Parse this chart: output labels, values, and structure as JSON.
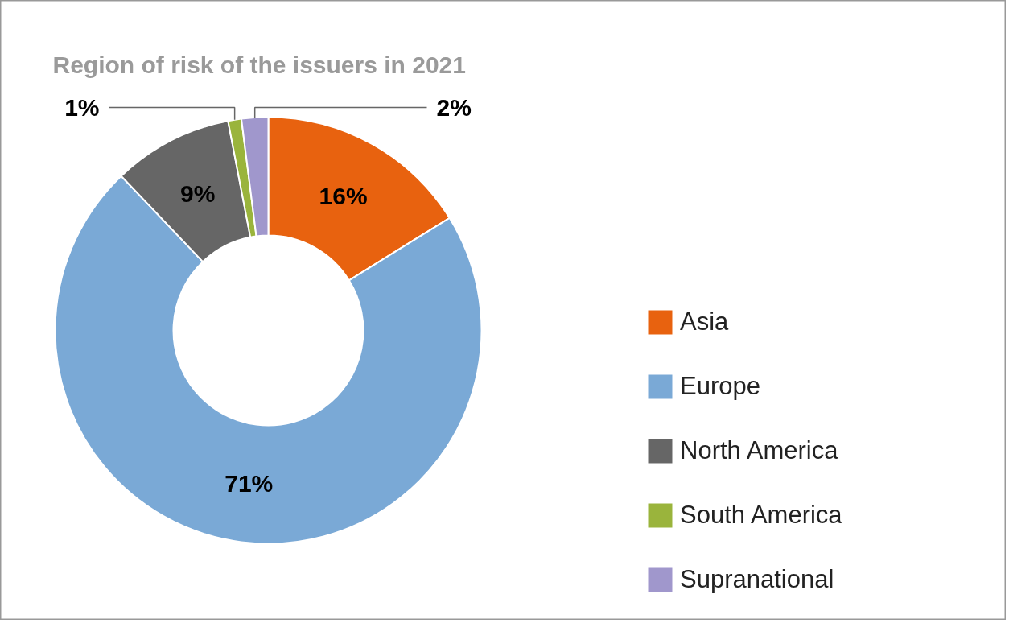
{
  "chart_data": {
    "type": "donut",
    "title": "Region of risk of the issuers in 2021",
    "categories": [
      "Asia",
      "Europe",
      "North America",
      "South America",
      "Supranational"
    ],
    "values": [
      16,
      71,
      9,
      1,
      2
    ],
    "colors": [
      "#e8620f",
      "#7aa9d6",
      "#666666",
      "#9ab43c",
      "#a097cc"
    ],
    "value_labels": [
      "16%",
      "71%",
      "9%",
      "1%",
      "2%"
    ],
    "legend": "right"
  }
}
